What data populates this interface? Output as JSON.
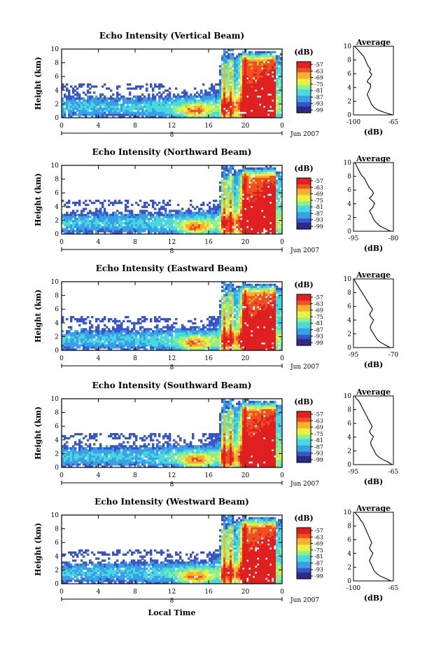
{
  "figure": {
    "xlabel": "Local Time",
    "date_label": "Jun 2007",
    "ylabel": "Height (km)",
    "colorbar_label": "(dB)",
    "average_title": "Average",
    "average_xlabel": "(dB)",
    "colormap": [
      "#2a2a8c",
      "#3a55c8",
      "#3aa0e6",
      "#48d8e0",
      "#8cf08c",
      "#e8f040",
      "#f8b030",
      "#f05020",
      "#e02020"
    ]
  },
  "chart_data": [
    {
      "type": "heatmap",
      "title": "Echo Intensity (Vertical Beam)",
      "x_ticks": [
        "0",
        "4",
        "8",
        "12",
        "16",
        "20",
        "0"
      ],
      "x_sub_label": "8",
      "xlim": [
        0,
        24
      ],
      "y_ticks": [
        "0",
        "2",
        "4",
        "6",
        "8",
        "10"
      ],
      "ylim": [
        0,
        10
      ],
      "colorbar_ticks": [
        "-57",
        "-63",
        "-69",
        "-75",
        "-81",
        "-87",
        "-93",
        "-99"
      ],
      "average": {
        "x_ticks": [
          "-100",
          "-65"
        ],
        "xlim": [
          -100,
          -65
        ],
        "y_ticks": [
          "0",
          "2",
          "4",
          "6",
          "8",
          "10"
        ],
        "values": [
          -66,
          -73,
          -79,
          -82,
          -84,
          -85,
          -86,
          -87,
          -88,
          -87,
          -86,
          -85,
          -85,
          -88,
          -87,
          -85,
          -84,
          -86,
          -85,
          -87,
          -88,
          -89,
          -90,
          -91,
          -93,
          -95,
          -97,
          -99
        ]
      }
    },
    {
      "type": "heatmap",
      "title": "Echo Intensity (Northward Beam)",
      "x_ticks": [
        "0",
        "4",
        "8",
        "12",
        "16",
        "20",
        "0"
      ],
      "x_sub_label": "8",
      "xlim": [
        0,
        24
      ],
      "y_ticks": [
        "0",
        "2",
        "4",
        "6",
        "8",
        "10"
      ],
      "ylim": [
        0,
        10
      ],
      "colorbar_ticks": [
        "-57",
        "-63",
        "-69",
        "-75",
        "-81",
        "-87",
        "-93",
        "-99"
      ],
      "average": {
        "x_ticks": [
          "-95",
          "-80"
        ],
        "xlim": [
          -95,
          -80
        ],
        "y_ticks": [
          "0",
          "2",
          "4",
          "6",
          "8",
          "10"
        ],
        "values": [
          -81,
          -83,
          -85,
          -86,
          -87,
          -87.5,
          -88,
          -88.5,
          -89,
          -88,
          -87.5,
          -87,
          -88,
          -89,
          -88,
          -87.5,
          -88,
          -89,
          -89.5,
          -90,
          -90.5,
          -91,
          -92,
          -92.5,
          -93,
          -93.5,
          -94,
          -94.5
        ]
      }
    },
    {
      "type": "heatmap",
      "title": "Echo Intensity (Eastward Beam)",
      "x_ticks": [
        "0",
        "4",
        "8",
        "12",
        "16",
        "20",
        "0"
      ],
      "x_sub_label": "8",
      "xlim": [
        0,
        24
      ],
      "y_ticks": [
        "0",
        "2",
        "4",
        "6",
        "8",
        "10"
      ],
      "ylim": [
        0,
        10
      ],
      "colorbar_ticks": [
        "-57",
        "-63",
        "-69",
        "-75",
        "-81",
        "-87",
        "-93",
        "-99"
      ],
      "average": {
        "x_ticks": [
          "-95",
          "-70"
        ],
        "xlim": [
          -95,
          -70
        ],
        "y_ticks": [
          "0",
          "2",
          "4",
          "6",
          "8",
          "10"
        ],
        "values": [
          -72,
          -75,
          -78,
          -80,
          -81,
          -82,
          -83,
          -84,
          -84.5,
          -84,
          -83,
          -82.5,
          -84,
          -85,
          -84,
          -83,
          -84,
          -85,
          -86,
          -87,
          -88,
          -89,
          -90,
          -91,
          -92,
          -93,
          -94,
          -94.5
        ]
      }
    },
    {
      "type": "heatmap",
      "title": "Echo Intensity (Southward Beam)",
      "x_ticks": [
        "0",
        "4",
        "8",
        "12",
        "16",
        "20",
        "0"
      ],
      "x_sub_label": "8",
      "xlim": [
        0,
        24
      ],
      "y_ticks": [
        "0",
        "2",
        "4",
        "6",
        "8",
        "10"
      ],
      "ylim": [
        0,
        10
      ],
      "colorbar_ticks": [
        "-57",
        "-63",
        "-69",
        "-75",
        "-81",
        "-87",
        "-93",
        "-99"
      ],
      "average": {
        "x_ticks": [
          "-95",
          "-65"
        ],
        "xlim": [
          -95,
          -65
        ],
        "y_ticks": [
          "0",
          "2",
          "4",
          "6",
          "8",
          "10"
        ],
        "values": [
          -66,
          -69,
          -73,
          -76,
          -78,
          -79,
          -80,
          -81,
          -82,
          -82,
          -81,
          -80,
          -82,
          -83,
          -82,
          -81,
          -82,
          -83,
          -84,
          -85,
          -86,
          -87,
          -88,
          -89,
          -90,
          -91,
          -93,
          -94
        ]
      }
    },
    {
      "type": "heatmap",
      "title": "Echo Intensity (Westward Beam)",
      "x_ticks": [
        "0",
        "4",
        "8",
        "12",
        "16",
        "20",
        "0"
      ],
      "x_sub_label": "8",
      "xlim": [
        0,
        24
      ],
      "y_ticks": [
        "0",
        "2",
        "4",
        "6",
        "8",
        "10"
      ],
      "ylim": [
        0,
        10
      ],
      "colorbar_ticks": [
        "-57",
        "-63",
        "-69",
        "-75",
        "-81",
        "-87",
        "-93",
        "-99"
      ],
      "average": {
        "x_ticks": [
          "-100",
          "-65"
        ],
        "xlim": [
          -100,
          -65
        ],
        "y_ticks": [
          "0",
          "2",
          "4",
          "6",
          "8",
          "10"
        ],
        "values": [
          -67,
          -72,
          -77,
          -80,
          -82,
          -83,
          -84,
          -85,
          -86,
          -85,
          -84,
          -83,
          -85,
          -86,
          -85,
          -84,
          -85,
          -86,
          -87,
          -88,
          -89,
          -90,
          -91,
          -92,
          -94,
          -95,
          -97,
          -99
        ]
      }
    }
  ]
}
